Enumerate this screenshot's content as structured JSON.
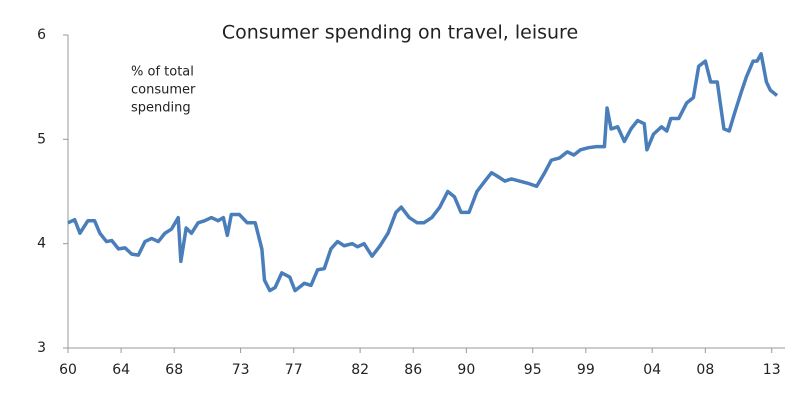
{
  "chart_data": {
    "type": "line",
    "title": "Consumer spending on travel, leisure",
    "annotation": [
      "% of total",
      "consumer",
      "spending"
    ],
    "x": [
      1960.0,
      1960.5,
      1960.9,
      1961.5,
      1962.0,
      1962.4,
      1962.9,
      1963.3,
      1963.8,
      1964.3,
      1964.8,
      1965.3,
      1965.8,
      1966.3,
      1966.8,
      1967.3,
      1967.8,
      1968.3,
      1968.5,
      1968.9,
      1969.3,
      1969.8,
      1970.3,
      1970.8,
      1971.3,
      1971.7,
      1972.0,
      1972.3,
      1972.9,
      1973.5,
      1974.1,
      1974.6,
      1974.8,
      1975.2,
      1975.6,
      1976.1,
      1976.7,
      1977.1,
      1977.8,
      1978.3,
      1978.8,
      1979.3,
      1979.8,
      1980.3,
      1980.8,
      1981.4,
      1981.8,
      1982.3,
      1982.9,
      1983.5,
      1984.1,
      1984.7,
      1985.1,
      1985.7,
      1986.3,
      1986.8,
      1987.4,
      1988.0,
      1988.6,
      1989.1,
      1989.6,
      1990.2,
      1990.8,
      1991.4,
      1991.9,
      1992.3,
      1992.9,
      1993.4,
      1994.0,
      1994.6,
      1995.3,
      1995.9,
      1996.4,
      1997.0,
      1997.6,
      1998.1,
      1998.6,
      1999.2,
      1999.8,
      2000.4,
      2000.6,
      2000.9,
      2001.4,
      2001.9,
      2002.4,
      2002.9,
      2003.4,
      2003.6,
      2004.1,
      2004.7,
      2005.1,
      2005.4,
      2006.0,
      2006.6,
      2007.1,
      2007.5,
      2008.0,
      2008.4,
      2008.9,
      2009.4,
      2009.8,
      2010.2,
      2010.7,
      2011.1,
      2011.6,
      2011.9,
      2012.2,
      2012.6,
      2012.9,
      2013.4
    ],
    "series": [
      {
        "color": "#4a7ebb",
        "values": [
          4.2,
          4.23,
          4.1,
          4.22,
          4.22,
          4.1,
          4.02,
          4.03,
          3.95,
          3.96,
          3.9,
          3.89,
          4.02,
          4.05,
          4.02,
          4.1,
          4.14,
          4.25,
          3.83,
          4.15,
          4.1,
          4.2,
          4.22,
          4.25,
          4.22,
          4.25,
          4.08,
          4.28,
          4.28,
          4.2,
          4.2,
          3.95,
          3.65,
          3.55,
          3.58,
          3.72,
          3.68,
          3.55,
          3.62,
          3.6,
          3.75,
          3.76,
          3.95,
          4.02,
          3.98,
          4.0,
          3.97,
          4.0,
          3.88,
          3.98,
          4.1,
          4.3,
          4.35,
          4.25,
          4.2,
          4.2,
          4.25,
          4.35,
          4.5,
          4.45,
          4.3,
          4.3,
          4.5,
          4.6,
          4.68,
          4.65,
          4.6,
          4.62,
          4.6,
          4.58,
          4.55,
          4.68,
          4.8,
          4.82,
          4.88,
          4.85,
          4.9,
          4.92,
          4.93,
          4.93,
          5.3,
          5.1,
          5.12,
          4.98,
          5.1,
          5.18,
          5.15,
          4.9,
          5.05,
          5.12,
          5.08,
          5.2,
          5.2,
          5.35,
          5.4,
          5.7,
          5.75,
          5.55,
          5.55,
          5.1,
          5.08,
          5.25,
          5.45,
          5.6,
          5.75,
          5.75,
          5.82,
          5.55,
          5.47,
          5.42
        ]
      }
    ],
    "xlim": [
      1960,
      2014
    ],
    "xticks": [
      {
        "value": 1960,
        "label": "60"
      },
      {
        "value": 1964,
        "label": "64"
      },
      {
        "value": 1968,
        "label": "68"
      },
      {
        "value": 1973,
        "label": "73"
      },
      {
        "value": 1977,
        "label": "77"
      },
      {
        "value": 1982,
        "label": "82"
      },
      {
        "value": 1986,
        "label": "86"
      },
      {
        "value": 1990,
        "label": "90"
      },
      {
        "value": 1995,
        "label": "95"
      },
      {
        "value": 1999,
        "label": "99"
      },
      {
        "value": 2004,
        "label": "04"
      },
      {
        "value": 2008,
        "label": "08"
      },
      {
        "value": 2013,
        "label": "13"
      }
    ],
    "ylim": [
      3,
      6
    ],
    "yticks": [
      3,
      4,
      5,
      6
    ]
  }
}
